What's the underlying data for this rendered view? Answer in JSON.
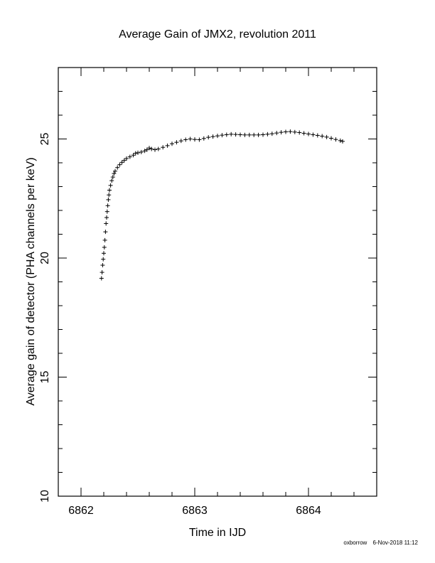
{
  "chart_data": {
    "type": "scatter",
    "title": "Average Gain of JMX2, revolution 2011",
    "xlabel": "Time in IJD",
    "ylabel": "Average gain of detector (PHA channels per keV)",
    "xlim": [
      6861.8,
      6864.6
    ],
    "ylim": [
      10,
      28
    ],
    "xticks": [
      6862,
      6863,
      6864
    ],
    "yticks": [
      10,
      15,
      20,
      25
    ],
    "marker": "+",
    "series": [
      {
        "points": [
          [
            6862.18,
            19.15
          ],
          [
            6862.185,
            19.4
          ],
          [
            6862.19,
            19.7
          ],
          [
            6862.195,
            19.95
          ],
          [
            6862.2,
            20.2
          ],
          [
            6862.205,
            20.45
          ],
          [
            6862.21,
            20.75
          ],
          [
            6862.215,
            21.1
          ],
          [
            6862.22,
            21.45
          ],
          [
            6862.225,
            21.7
          ],
          [
            6862.23,
            21.95
          ],
          [
            6862.235,
            22.2
          ],
          [
            6862.24,
            22.45
          ],
          [
            6862.245,
            22.65
          ],
          [
            6862.25,
            22.85
          ],
          [
            6862.26,
            23.05
          ],
          [
            6862.27,
            23.25
          ],
          [
            6862.28,
            23.4
          ],
          [
            6862.29,
            23.55
          ],
          [
            6862.3,
            23.65
          ],
          [
            6862.32,
            23.8
          ],
          [
            6862.34,
            23.92
          ],
          [
            6862.36,
            24.02
          ],
          [
            6862.38,
            24.1
          ],
          [
            6862.4,
            24.18
          ],
          [
            6862.43,
            24.25
          ],
          [
            6862.46,
            24.32
          ],
          [
            6862.48,
            24.4
          ],
          [
            6862.5,
            24.42
          ],
          [
            6862.53,
            24.45
          ],
          [
            6862.56,
            24.5
          ],
          [
            6862.58,
            24.55
          ],
          [
            6862.6,
            24.62
          ],
          [
            6862.62,
            24.58
          ],
          [
            6862.65,
            24.55
          ],
          [
            6862.68,
            24.58
          ],
          [
            6862.72,
            24.65
          ],
          [
            6862.76,
            24.72
          ],
          [
            6862.8,
            24.8
          ],
          [
            6862.84,
            24.86
          ],
          [
            6862.88,
            24.92
          ],
          [
            6862.92,
            24.97
          ],
          [
            6862.96,
            25.0
          ],
          [
            6863.0,
            24.98
          ],
          [
            6863.04,
            24.97
          ],
          [
            6863.08,
            25.02
          ],
          [
            6863.12,
            25.07
          ],
          [
            6863.16,
            25.1
          ],
          [
            6863.2,
            25.13
          ],
          [
            6863.24,
            25.16
          ],
          [
            6863.28,
            25.18
          ],
          [
            6863.32,
            25.2
          ],
          [
            6863.36,
            25.19
          ],
          [
            6863.4,
            25.18
          ],
          [
            6863.44,
            25.17
          ],
          [
            6863.48,
            25.17
          ],
          [
            6863.52,
            25.17
          ],
          [
            6863.56,
            25.17
          ],
          [
            6863.6,
            25.18
          ],
          [
            6863.64,
            25.2
          ],
          [
            6863.68,
            25.22
          ],
          [
            6863.72,
            25.25
          ],
          [
            6863.76,
            25.28
          ],
          [
            6863.8,
            25.3
          ],
          [
            6863.84,
            25.31
          ],
          [
            6863.88,
            25.29
          ],
          [
            6863.92,
            25.27
          ],
          [
            6863.96,
            25.24
          ],
          [
            6864.0,
            25.21
          ],
          [
            6864.04,
            25.18
          ],
          [
            6864.08,
            25.15
          ],
          [
            6864.12,
            25.12
          ],
          [
            6864.16,
            25.08
          ],
          [
            6864.2,
            25.03
          ],
          [
            6864.24,
            24.98
          ],
          [
            6864.28,
            24.93
          ],
          [
            6864.3,
            24.9
          ]
        ]
      }
    ],
    "grid": false
  },
  "footer": {
    "user": "oxborrow",
    "timestamp": "6-Nov-2018 11:12"
  }
}
